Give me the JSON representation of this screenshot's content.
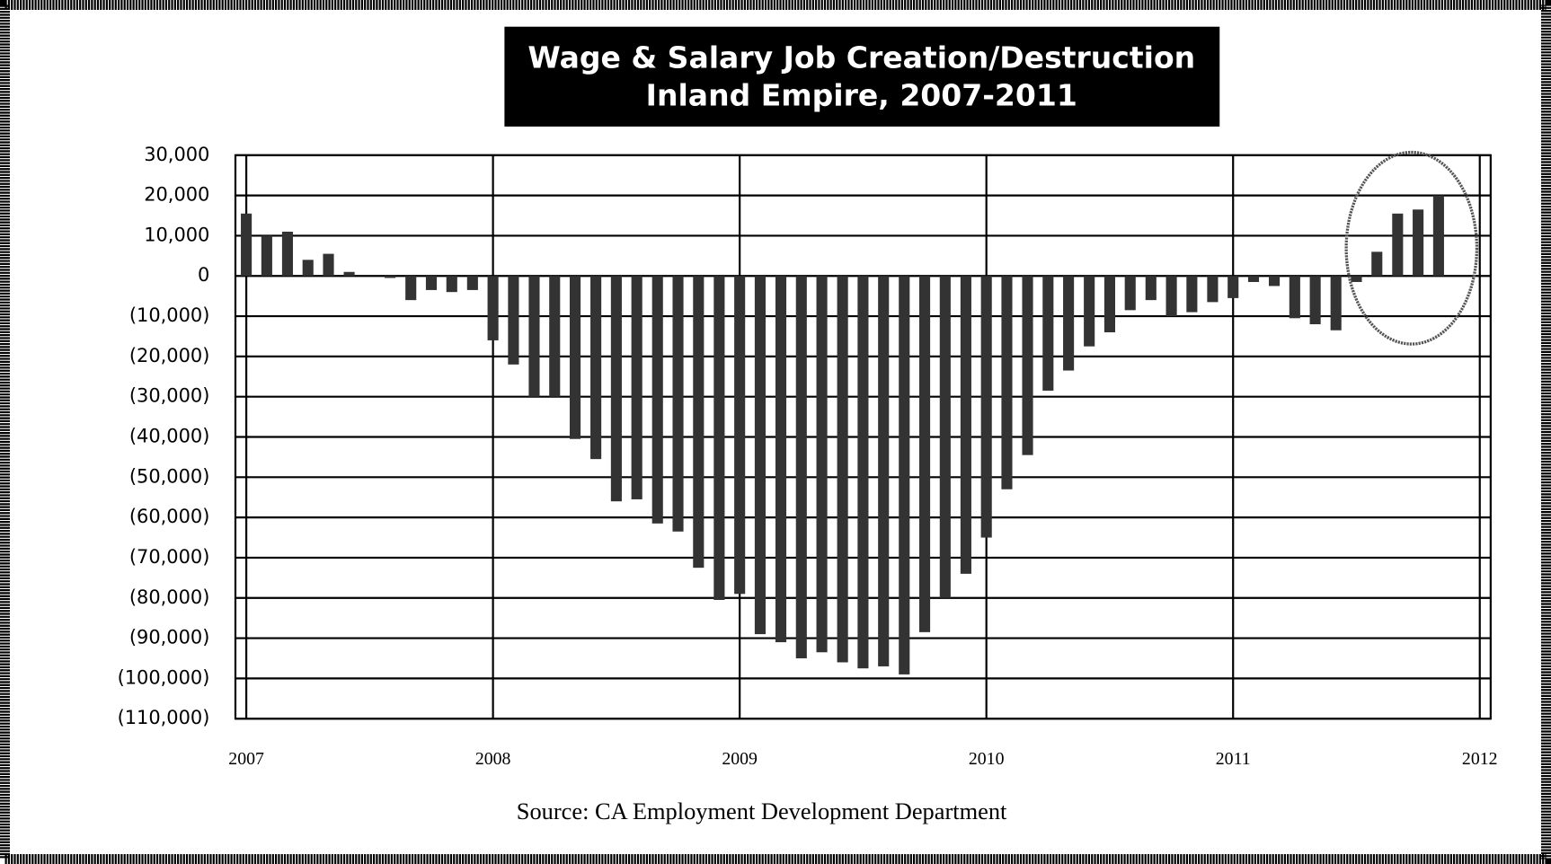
{
  "chart_data": {
    "type": "bar",
    "title": "Wage & Salary Job Creation/Destruction",
    "subtitle": "Inland Empire, 2007-2011",
    "source": "Source:  CA Employment Development Department",
    "color": "#333333",
    "grid": true,
    "x": [
      2007,
      2007.083,
      2007.167,
      2007.25,
      2007.333,
      2007.417,
      2007.5,
      2007.583,
      2007.667,
      2007.75,
      2007.833,
      2007.917,
      2008,
      2008.083,
      2008.167,
      2008.25,
      2008.333,
      2008.417,
      2008.5,
      2008.583,
      2008.667,
      2008.75,
      2008.833,
      2008.917,
      2009,
      2009.083,
      2009.167,
      2009.25,
      2009.333,
      2009.417,
      2009.5,
      2009.583,
      2009.667,
      2009.75,
      2009.833,
      2009.917,
      2010,
      2010.083,
      2010.167,
      2010.25,
      2010.333,
      2010.417,
      2010.5,
      2010.583,
      2010.667,
      2010.75,
      2010.833,
      2010.917,
      2011,
      2011.083,
      2011.167,
      2011.25,
      2011.333,
      2011.417,
      2011.5,
      2011.583,
      2011.667,
      2011.75,
      2011.833
    ],
    "values": [
      15500,
      10000,
      11000,
      4000,
      5500,
      1000,
      0,
      -500,
      -6000,
      -3500,
      -4000,
      -3500,
      -16000,
      -22000,
      -30000,
      -30000,
      -40500,
      -45500,
      -56000,
      -55500,
      -61500,
      -63500,
      -72500,
      -80500,
      -79000,
      -89000,
      -91000,
      -95000,
      -93500,
      -96000,
      -97500,
      -97000,
      -99000,
      -88500,
      -80000,
      -74000,
      -65000,
      -53000,
      -44500,
      -28500,
      -23500,
      -17500,
      -14000,
      -8500,
      -6000,
      -10000,
      -9000,
      -6500,
      -5500,
      -1500,
      -2500,
      -10500,
      -12000,
      -13500,
      -1500,
      6000,
      15500,
      16500,
      20000
    ],
    "xlim": [
      2007,
      2012
    ],
    "xticks": [
      2007,
      2008,
      2009,
      2010,
      2011,
      2012
    ],
    "ylim": [
      -110000,
      30000
    ],
    "yticks": [
      {
        "value": 30000,
        "label": "30,000"
      },
      {
        "value": 20000,
        "label": "20,000"
      },
      {
        "value": 10000,
        "label": "10,000"
      },
      0,
      {
        "value": -10000,
        "label": "(10,000)"
      },
      {
        "value": -20000,
        "label": "(20,000)"
      },
      {
        "value": -30000,
        "label": "(30,000)"
      },
      {
        "value": -40000,
        "label": "(40,000)"
      },
      {
        "value": -50000,
        "label": "(50,000)"
      },
      {
        "value": -60000,
        "label": "(60,000)"
      },
      {
        "value": -70000,
        "label": "(70,000)"
      },
      {
        "value": -80000,
        "label": "(80,000)"
      },
      {
        "value": -90000,
        "label": "(90,000)"
      },
      {
        "value": -100000,
        "label": "(100,000)"
      },
      {
        "value": -110000,
        "label": "(110,000)"
      }
    ]
  }
}
